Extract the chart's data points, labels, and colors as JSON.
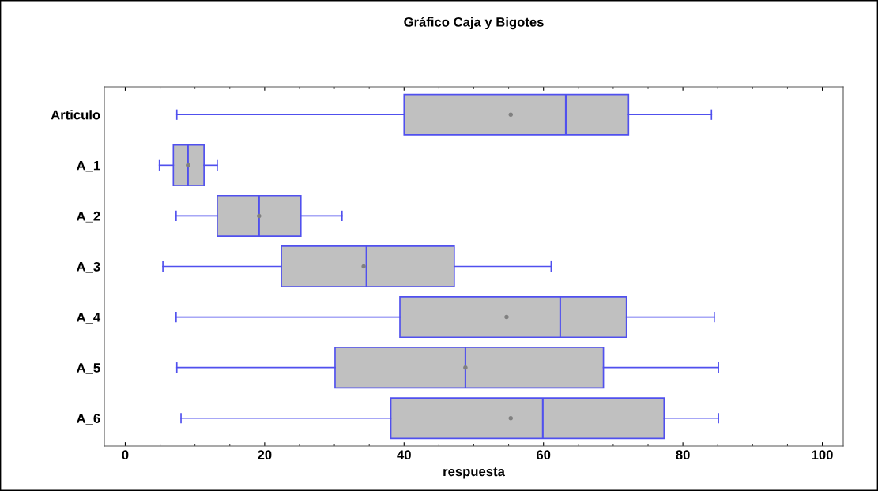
{
  "chart_data": {
    "type": "box",
    "title": "Gráfico Caja y Bigotes",
    "xlabel": "respuesta",
    "orientation": "horizontal",
    "categories": [
      "Articulo",
      "A_1",
      "A_2",
      "A_3",
      "A_4",
      "A_5",
      "A_6"
    ],
    "series": [
      {
        "color": "#c0c0c0",
        "boxes": [
          {
            "low": 7.4,
            "q1": 40,
            "median": 63.2,
            "q3": 72.2,
            "high": 84.1,
            "mean": 55.3
          },
          {
            "low": 4.9,
            "q1": 6.9,
            "median": 9.0,
            "q3": 11.3,
            "high": 13.2,
            "mean": 9.0
          },
          {
            "low": 7.3,
            "q1": 13.2,
            "median": 19.2,
            "q3": 25.2,
            "high": 31.1,
            "mean": 19.2
          },
          {
            "low": 5.4,
            "q1": 22.4,
            "median": 34.6,
            "q3": 47.2,
            "high": 61.1,
            "mean": 34.2
          },
          {
            "low": 7.3,
            "q1": 39.4,
            "median": 62.4,
            "q3": 71.9,
            "high": 84.5,
            "mean": 54.7
          },
          {
            "low": 7.4,
            "q1": 30.1,
            "median": 48.8,
            "q3": 68.6,
            "high": 85.1,
            "mean": 48.8
          },
          {
            "low": 8.0,
            "q1": 38.1,
            "median": 59.9,
            "q3": 77.3,
            "high": 85.1,
            "mean": 55.3
          }
        ]
      }
    ],
    "xlim": [
      -3,
      103
    ],
    "xticks": [
      0,
      20,
      40,
      60,
      80,
      100
    ],
    "grid": false
  }
}
